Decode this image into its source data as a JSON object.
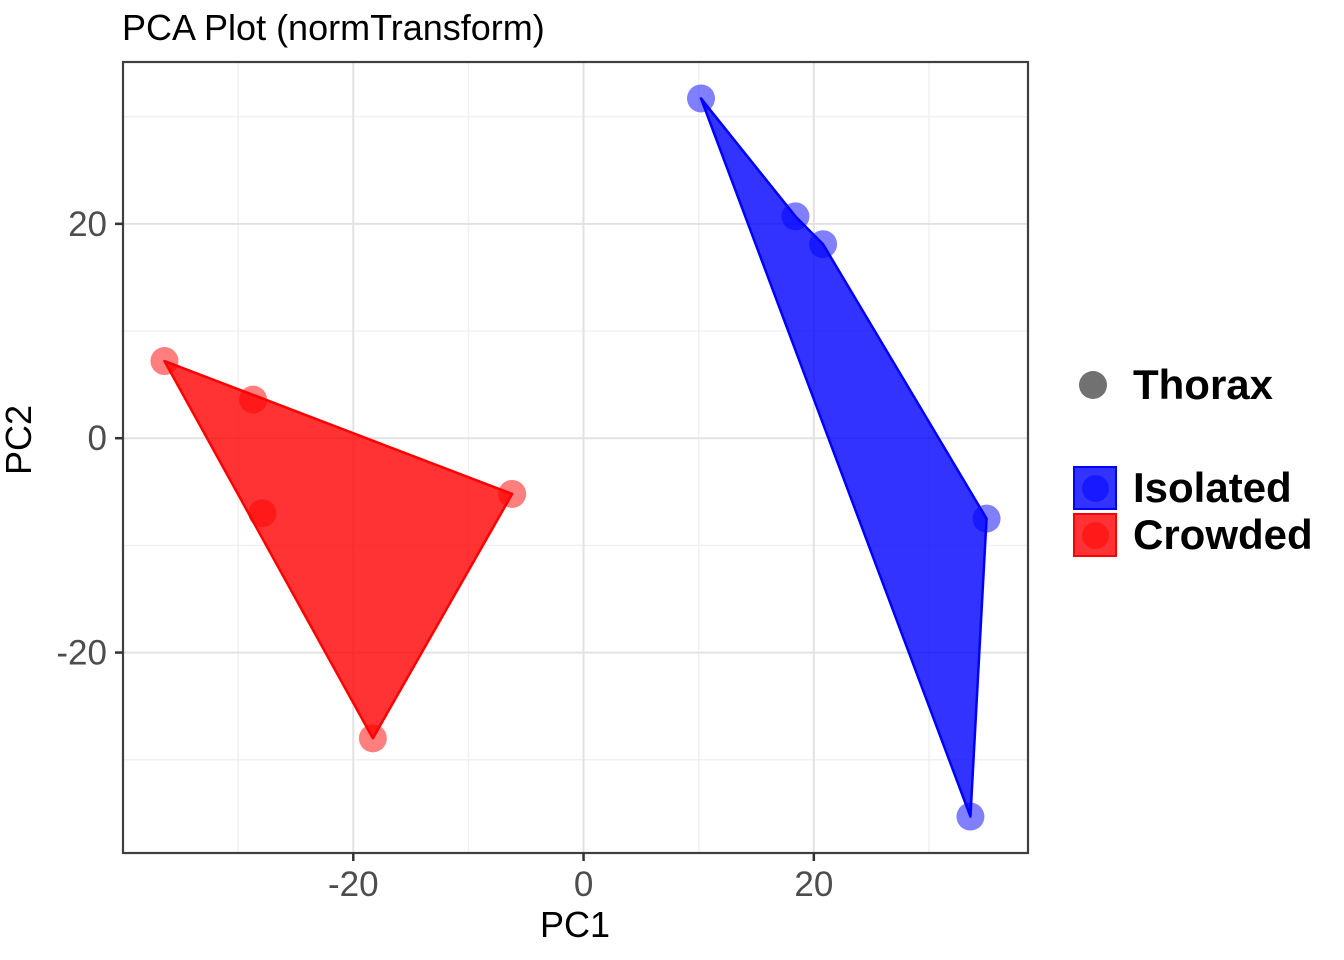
{
  "title": "PCA Plot (normTransform)",
  "chart_data": {
    "type": "scatter",
    "title": "PCA Plot (normTransform)",
    "xlabel": "PC1",
    "ylabel": "PC2",
    "xlim": [
      -40.0,
      38.6
    ],
    "ylim": [
      -38.7,
      35.1
    ],
    "x_major_ticks": [
      -20,
      0,
      20
    ],
    "x_minor_ticks": [
      -30,
      -10,
      10,
      30
    ],
    "y_major_ticks": [
      -20,
      0,
      20
    ],
    "y_minor_ticks": [
      -30,
      -10,
      10,
      30
    ],
    "grid": "major+minor",
    "legend_position": "right",
    "fill_alpha": 0.8,
    "point_alpha": 0.5,
    "series": [
      {
        "name": "Isolated",
        "color": "#0000FF",
        "points": [
          [
            10.2,
            31.7
          ],
          [
            18.4,
            20.7
          ],
          [
            20.8,
            18.1
          ],
          [
            35.0,
            -7.5
          ],
          [
            33.6,
            -35.3
          ]
        ],
        "hull": [
          [
            10.2,
            31.7
          ],
          [
            18.4,
            20.7
          ],
          [
            20.8,
            18.1
          ],
          [
            35.0,
            -7.5
          ],
          [
            33.6,
            -35.3
          ]
        ]
      },
      {
        "name": "Crowded",
        "color": "#FF0000",
        "points": [
          [
            -36.4,
            7.2
          ],
          [
            -28.7,
            3.6
          ],
          [
            -27.9,
            -7.0
          ],
          [
            -6.2,
            -5.2
          ],
          [
            -18.3,
            -28.0
          ]
        ],
        "hull": [
          [
            -36.4,
            7.2
          ],
          [
            -6.2,
            -5.2
          ],
          [
            -18.3,
            -28.0
          ]
        ]
      }
    ]
  },
  "legend": {
    "point_group": {
      "label": "Thorax",
      "color": "#717171"
    },
    "entries": [
      {
        "label": "Isolated",
        "color": "#0000FF"
      },
      {
        "label": "Crowded",
        "color": "#FF0000"
      }
    ]
  },
  "style_colors": {
    "grid_major": "#e2e2e2",
    "grid_minor": "#f0f0f0",
    "panel_border": "#3f3f3f",
    "tick_mark": "#333333",
    "tick_text": "#4d4d4d"
  }
}
